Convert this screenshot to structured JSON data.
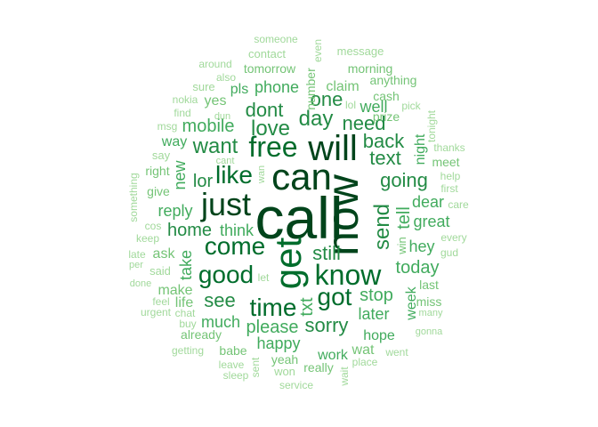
{
  "palette": {
    "darkest": "#00441b",
    "dark": "#006d2c",
    "mid_dark": "#238b45",
    "mid": "#41ab5d",
    "light": "#74c476",
    "lightest": "#a1d99b"
  },
  "words": [
    {
      "text": "call",
      "tier": 0
    },
    {
      "text": "now",
      "tier": 0
    },
    {
      "text": "can",
      "tier": 0
    },
    {
      "text": "will",
      "tier": 0
    },
    {
      "text": "get",
      "tier": 0
    },
    {
      "text": "just",
      "tier": 0
    },
    {
      "text": "free",
      "tier": 1
    },
    {
      "text": "know",
      "tier": 1
    },
    {
      "text": "like",
      "tier": 1
    },
    {
      "text": "come",
      "tier": 1
    },
    {
      "text": "good",
      "tier": 1
    },
    {
      "text": "got",
      "tier": 1
    },
    {
      "text": "time",
      "tier": 1
    },
    {
      "text": "day",
      "tier": 2
    },
    {
      "text": "love",
      "tier": 2
    },
    {
      "text": "want",
      "tier": 2
    },
    {
      "text": "send",
      "tier": 2
    },
    {
      "text": "back",
      "tier": 2
    },
    {
      "text": "text",
      "tier": 2
    },
    {
      "text": "going",
      "tier": 2
    },
    {
      "text": "one",
      "tier": 2
    },
    {
      "text": "dont",
      "tier": 2
    },
    {
      "text": "need",
      "tier": 2
    },
    {
      "text": "still",
      "tier": 2
    },
    {
      "text": "see",
      "tier": 2
    },
    {
      "text": "sorry",
      "tier": 2
    },
    {
      "text": "please",
      "tier": 2
    },
    {
      "text": "home",
      "tier": 2
    },
    {
      "text": "mobile",
      "tier": 2
    },
    {
      "text": "lor",
      "tier": 2
    },
    {
      "text": "today",
      "tier": 2
    },
    {
      "text": "stop",
      "tier": 2
    },
    {
      "text": "tell",
      "tier": 2
    },
    {
      "text": "txt",
      "tier": 2
    },
    {
      "text": "reply",
      "tier": 3
    },
    {
      "text": "think",
      "tier": 3
    },
    {
      "text": "great",
      "tier": 3
    },
    {
      "text": "dear",
      "tier": 3
    },
    {
      "text": "hey",
      "tier": 3
    },
    {
      "text": "well",
      "tier": 3
    },
    {
      "text": "later",
      "tier": 3
    },
    {
      "text": "phone",
      "tier": 3
    },
    {
      "text": "much",
      "tier": 3
    },
    {
      "text": "happy",
      "tier": 3
    },
    {
      "text": "work",
      "tier": 3
    },
    {
      "text": "hope",
      "tier": 3
    },
    {
      "text": "take",
      "tier": 3
    },
    {
      "text": "new",
      "tier": 3
    },
    {
      "text": "week",
      "tier": 3
    },
    {
      "text": "night",
      "tier": 3
    },
    {
      "text": "claim",
      "tier": 3
    },
    {
      "text": "pls",
      "tier": 3
    },
    {
      "text": "way",
      "tier": 3
    },
    {
      "text": "make",
      "tier": 3
    },
    {
      "text": "ask",
      "tier": 3
    },
    {
      "text": "life",
      "tier": 3
    },
    {
      "text": "wat",
      "tier": 3
    },
    {
      "text": "yes",
      "tier": 3
    },
    {
      "text": "last",
      "tier": 3
    },
    {
      "text": "miss",
      "tier": 3
    },
    {
      "text": "meet",
      "tier": 3
    },
    {
      "text": "give",
      "tier": 4
    },
    {
      "text": "cash",
      "tier": 4
    },
    {
      "text": "prize",
      "tier": 4
    },
    {
      "text": "number",
      "tier": 4
    },
    {
      "text": "tomorrow",
      "tier": 4
    },
    {
      "text": "already",
      "tier": 4
    },
    {
      "text": "yeah",
      "tier": 4
    },
    {
      "text": "really",
      "tier": 4
    },
    {
      "text": "babe",
      "tier": 4
    },
    {
      "text": "morning",
      "tier": 4
    },
    {
      "text": "anything",
      "tier": 4
    },
    {
      "text": "contact",
      "tier": 4
    },
    {
      "text": "message",
      "tier": 4
    },
    {
      "text": "right",
      "tier": 4
    },
    {
      "text": "say",
      "tier": 4
    },
    {
      "text": "win",
      "tier": 4
    },
    {
      "text": "sure",
      "tier": 4
    },
    {
      "text": "also",
      "tier": 4
    },
    {
      "text": "around",
      "tier": 4
    },
    {
      "text": "someone",
      "tier": 4
    },
    {
      "text": "even",
      "tier": 4
    },
    {
      "text": "nokia",
      "tier": 4
    },
    {
      "text": "find",
      "tier": 4
    },
    {
      "text": "msg",
      "tier": 4
    },
    {
      "text": "pick",
      "tier": 4
    },
    {
      "text": "tonight",
      "tier": 4
    },
    {
      "text": "thanks",
      "tier": 4
    },
    {
      "text": "help",
      "tier": 4
    },
    {
      "text": "first",
      "tier": 4
    },
    {
      "text": "care",
      "tier": 4
    },
    {
      "text": "every",
      "tier": 4
    },
    {
      "text": "gud",
      "tier": 4
    },
    {
      "text": "something",
      "tier": 4
    },
    {
      "text": "keep",
      "tier": 4
    },
    {
      "text": "cos",
      "tier": 4
    },
    {
      "text": "late",
      "tier": 4
    },
    {
      "text": "per",
      "tier": 4
    },
    {
      "text": "said",
      "tier": 4
    },
    {
      "text": "done",
      "tier": 4
    },
    {
      "text": "feel",
      "tier": 4
    },
    {
      "text": "urgent",
      "tier": 4
    },
    {
      "text": "chat",
      "tier": 4
    },
    {
      "text": "buy",
      "tier": 4
    },
    {
      "text": "getting",
      "tier": 4
    },
    {
      "text": "leave",
      "tier": 4
    },
    {
      "text": "sleep",
      "tier": 4
    },
    {
      "text": "sent",
      "tier": 4
    },
    {
      "text": "won",
      "tier": 4
    },
    {
      "text": "service",
      "tier": 4
    },
    {
      "text": "wait",
      "tier": 4
    },
    {
      "text": "place",
      "tier": 4
    },
    {
      "text": "went",
      "tier": 4
    },
    {
      "text": "gonna",
      "tier": 4
    },
    {
      "text": "many",
      "tier": 4
    },
    {
      "text": "let",
      "tier": 4
    },
    {
      "text": "wan",
      "tier": 4
    },
    {
      "text": "cant",
      "tier": 4
    },
    {
      "text": "dun",
      "tier": 4
    },
    {
      "text": "lol",
      "tier": 4
    }
  ]
}
